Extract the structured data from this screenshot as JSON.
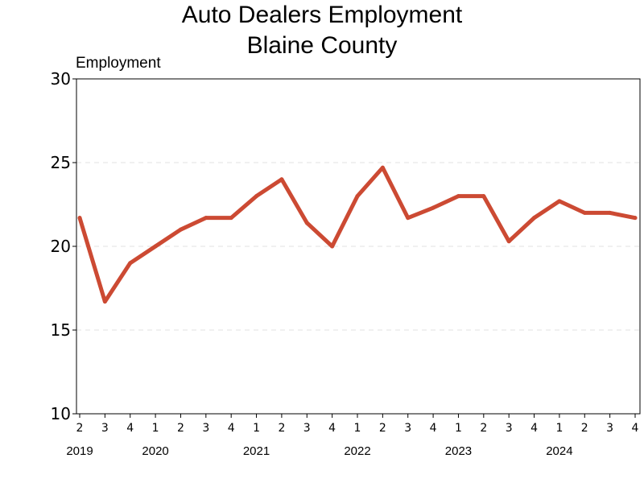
{
  "chart_data": {
    "type": "line",
    "title": "Auto Dealers Employment",
    "subtitle": "Blaine County",
    "ylabel": "Employment",
    "ylim": [
      10,
      30
    ],
    "yticks": [
      10,
      15,
      20,
      25,
      30
    ],
    "grid": true,
    "x": [
      "2019 Q2",
      "2019 Q3",
      "2019 Q4",
      "2020 Q1",
      "2020 Q2",
      "2020 Q3",
      "2020 Q4",
      "2021 Q1",
      "2021 Q2",
      "2021 Q3",
      "2021 Q4",
      "2022 Q1",
      "2022 Q2",
      "2022 Q3",
      "2022 Q4",
      "2023 Q1",
      "2023 Q2",
      "2023 Q3",
      "2023 Q4",
      "2024 Q1",
      "2024 Q2",
      "2024 Q3",
      "2024 Q4"
    ],
    "quarter_labels": [
      "2",
      "3",
      "4",
      "1",
      "2",
      "3",
      "4",
      "1",
      "2",
      "3",
      "4",
      "1",
      "2",
      "3",
      "4",
      "1",
      "2",
      "3",
      "4",
      "1",
      "2",
      "3",
      "4"
    ],
    "year_labels": [
      {
        "label": "2019",
        "first_index": 0
      },
      {
        "label": "2020",
        "first_index": 3
      },
      {
        "label": "2021",
        "first_index": 7
      },
      {
        "label": "2022",
        "first_index": 11
      },
      {
        "label": "2023",
        "first_index": 15
      },
      {
        "label": "2024",
        "first_index": 19
      }
    ],
    "series": [
      {
        "color": "#cc4a33",
        "values": [
          21.7,
          16.7,
          19.0,
          20.0,
          21.0,
          21.7,
          21.7,
          23.0,
          24.0,
          21.4,
          20.0,
          23.0,
          24.7,
          21.7,
          22.3,
          23.0,
          23.0,
          20.3,
          21.7,
          22.7,
          22.0,
          22.0,
          21.7
        ]
      }
    ]
  }
}
